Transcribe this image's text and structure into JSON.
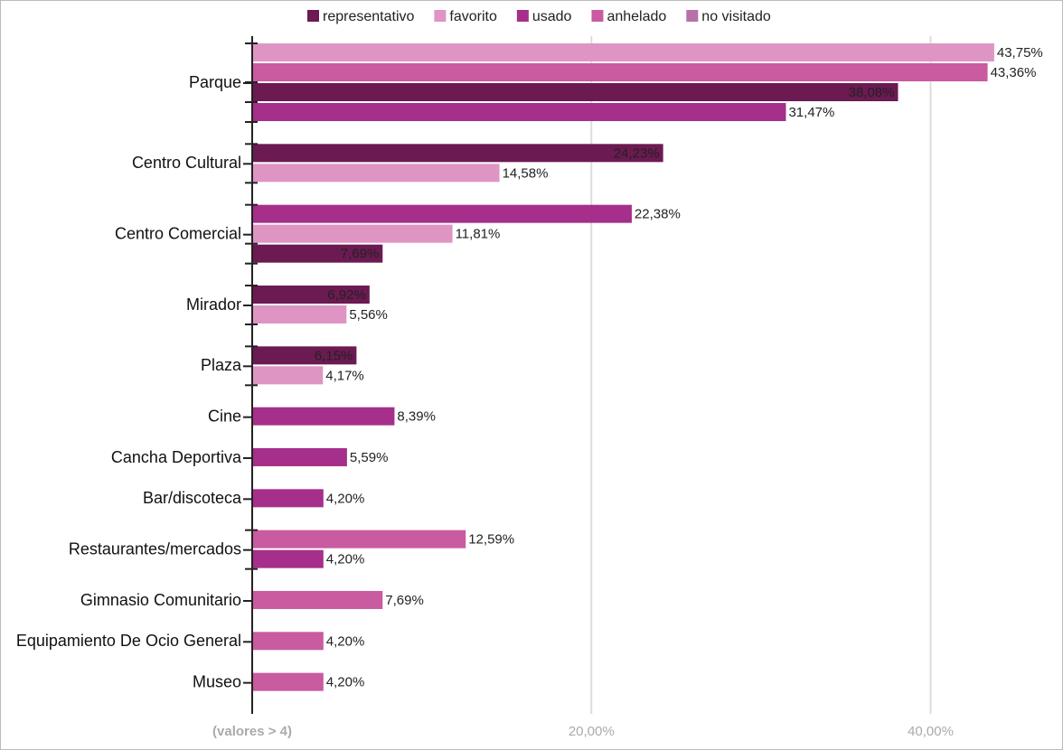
{
  "chart_data": {
    "type": "bar",
    "orientation": "horizontal",
    "series": [
      {
        "name": "representativo",
        "color": "#6b1a52"
      },
      {
        "name": "favorito",
        "color": "#de95c4"
      },
      {
        "name": "usado",
        "color": "#a52f8a"
      },
      {
        "name": "anhelado",
        "color": "#c95ba0"
      },
      {
        "name": "no visitado",
        "color": "#b870a6"
      }
    ],
    "groups": [
      {
        "category": "Parque",
        "series": [
          "favorito",
          "anhelado",
          "representativo",
          "usado"
        ],
        "values": [
          43.75,
          43.36,
          38.08,
          31.47
        ],
        "value_labels": [
          "43,75%",
          "43,36%",
          "38,08%",
          "31,47%"
        ]
      },
      {
        "category": "Centro Cultural",
        "series": [
          "representativo",
          "favorito"
        ],
        "values": [
          24.23,
          14.58
        ],
        "value_labels": [
          "24,23%",
          "14,58%"
        ]
      },
      {
        "category": "Centro Comercial",
        "series": [
          "usado",
          "favorito",
          "representativo"
        ],
        "values": [
          22.38,
          11.81,
          7.69
        ],
        "value_labels": [
          "22,38%",
          "11,81%",
          "7,69%"
        ]
      },
      {
        "category": "Mirador",
        "series": [
          "representativo",
          "favorito"
        ],
        "values": [
          6.92,
          5.56
        ],
        "value_labels": [
          "6,92%",
          "5,56%"
        ]
      },
      {
        "category": "Plaza",
        "series": [
          "representativo",
          "favorito"
        ],
        "values": [
          6.15,
          4.17
        ],
        "value_labels": [
          "6,15%",
          "4,17%"
        ]
      },
      {
        "category": "Cine",
        "series": [
          "usado"
        ],
        "values": [
          8.39
        ],
        "value_labels": [
          "8,39%"
        ]
      },
      {
        "category": "Cancha Deportiva",
        "series": [
          "usado"
        ],
        "values": [
          5.59
        ],
        "value_labels": [
          "5,59%"
        ]
      },
      {
        "category": "Bar/discoteca",
        "series": [
          "usado"
        ],
        "values": [
          4.2
        ],
        "value_labels": [
          "4,20%"
        ]
      },
      {
        "category": "Restaurantes/mercados",
        "series": [
          "anhelado",
          "usado"
        ],
        "values": [
          12.59,
          4.2
        ],
        "value_labels": [
          "12,59%",
          "4,20%"
        ]
      },
      {
        "category": "Gimnasio Comunitario",
        "series": [
          "anhelado"
        ],
        "values": [
          7.69
        ],
        "value_labels": [
          "7,69%"
        ]
      },
      {
        "category": "Equipamiento De Ocio General",
        "series": [
          "anhelado"
        ],
        "values": [
          4.2
        ],
        "value_labels": [
          "4,20%"
        ]
      },
      {
        "category": "Museo",
        "series": [
          "anhelado"
        ],
        "values": [
          4.2
        ],
        "value_labels": [
          "4,20%"
        ]
      }
    ],
    "xlim": [
      0,
      47.7
    ],
    "xticks": [
      {
        "value": 0,
        "label": "(valores > 4)"
      },
      {
        "value": 20,
        "label": "20,00%"
      },
      {
        "value": 40,
        "label": "40,00%"
      }
    ],
    "grid": true,
    "legend": "top"
  }
}
